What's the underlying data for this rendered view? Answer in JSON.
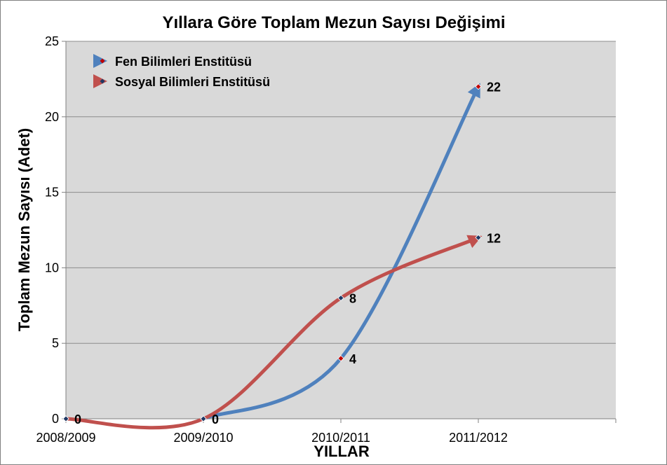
{
  "chart_data": {
    "type": "line",
    "title": "Yıllara Göre Toplam Mezun Sayısı Değişimi",
    "xlabel": "YILLAR",
    "ylabel": "Toplam Mezun Sayısı (Adet)",
    "categories": [
      "2008/2009",
      "2009/2010",
      "2010/2011",
      "2011/2012"
    ],
    "ylim": [
      0,
      25
    ],
    "yticks": [
      "0",
      "5",
      "10",
      "15",
      "20",
      "25"
    ],
    "grid": true,
    "legend_position": "top-left",
    "series": [
      {
        "name": "Fen Bilimleri Enstitüsü",
        "color": "#4F81BD",
        "marker_color": "#C00000",
        "values": [
          0,
          0,
          4,
          22
        ],
        "start_index": 1
      },
      {
        "name": "Sosyal Bilimleri Enstitüsü",
        "color": "#C0504D",
        "marker_color": "#1F3864",
        "values": [
          0,
          0,
          8,
          12
        ],
        "start_index": 0
      }
    ],
    "data_labels": [
      {
        "series": 1,
        "index": 0,
        "text": "0"
      },
      {
        "series": 0,
        "index": 1,
        "text": "0"
      },
      {
        "series": 0,
        "index": 2,
        "text": "4"
      },
      {
        "series": 1,
        "index": 2,
        "text": "8"
      },
      {
        "series": 0,
        "index": 3,
        "text": "22"
      },
      {
        "series": 1,
        "index": 3,
        "text": "12"
      }
    ]
  }
}
